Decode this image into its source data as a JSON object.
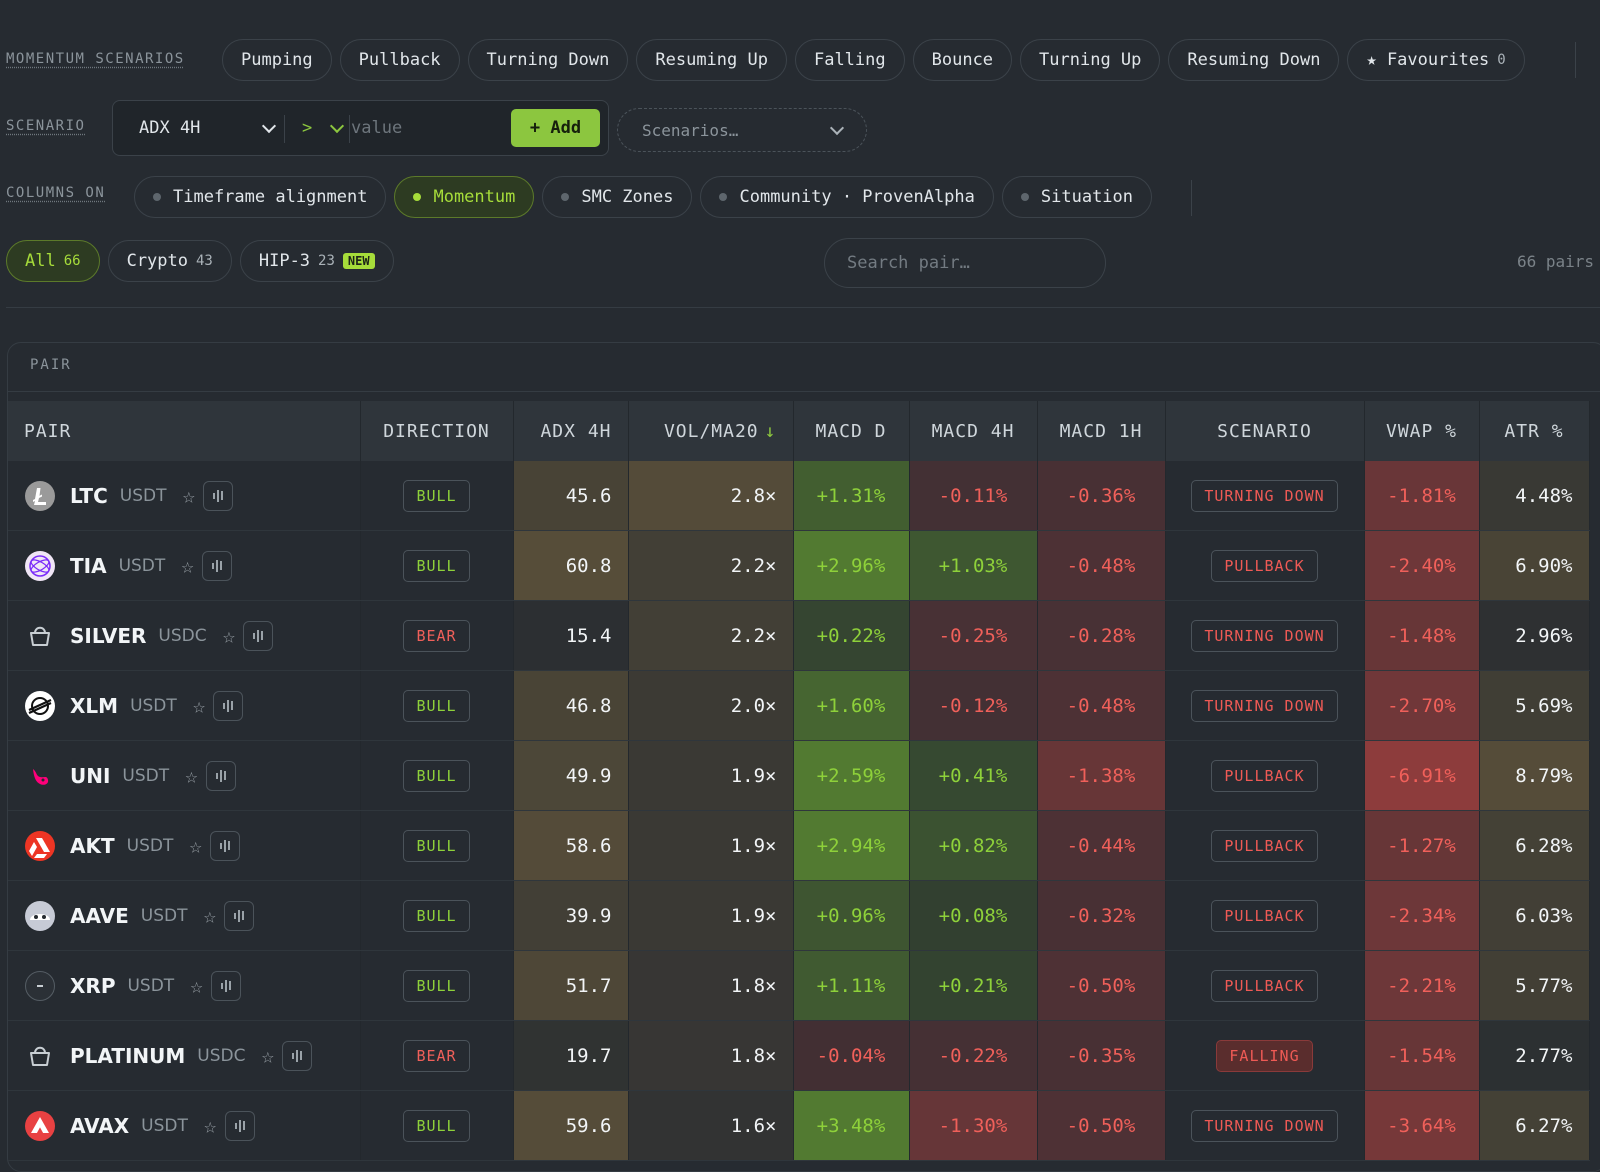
{
  "filters": {
    "momentum_label": "MOMENTUM SCENARIOS",
    "momentum_chips": [
      "Pumping",
      "Pullback",
      "Turning Down",
      "Resuming Up",
      "Falling",
      "Bounce",
      "Turning Up",
      "Resuming Down"
    ],
    "favourites_label": "★ Favourites",
    "favourites_count": "0",
    "scenario_label": "SCENARIO",
    "builder": {
      "metric": "ADX 4H",
      "operator": ">",
      "value_placeholder": "value",
      "add_label": "+ Add"
    },
    "scenarios_dropdown": "Scenarios…",
    "columns_label": "COLUMNS ON",
    "columns_chips": [
      {
        "label": "Timeframe alignment",
        "active": false
      },
      {
        "label": "Momentum",
        "active": true
      },
      {
        "label": "SMC Zones",
        "active": false
      },
      {
        "label": "Community · ProvenAlpha",
        "active": false
      },
      {
        "label": "Situation",
        "active": false
      }
    ],
    "market_tabs": [
      {
        "label": "All",
        "count": "66",
        "active": true
      },
      {
        "label": "Crypto",
        "count": "43",
        "active": false
      },
      {
        "label": "HIP-3",
        "count": "23",
        "active": false,
        "badge": "NEW"
      }
    ],
    "search_placeholder": "Search pair…",
    "pairs_count": "66 pairs"
  },
  "table": {
    "group_header": "PAIR",
    "columns": [
      "PAIR",
      "DIRECTION",
      "ADX 4H",
      "VOL/MA20",
      "MACD D",
      "MACD 4H",
      "MACD 1H",
      "SCENARIO",
      "VWAP %",
      "ATR %"
    ],
    "sort_indicator": "↓",
    "rows": [
      {
        "symbol": "LTC",
        "quote": "USDT",
        "icon": "ltc-icon",
        "direction": "BULL",
        "adx": "45.6",
        "vol": "2.8×",
        "macd_d": "+1.31%",
        "macd_4h": "-0.11%",
        "macd_1h": "-0.36%",
        "scenario": "TURNING DOWN",
        "vwap": "-1.81%",
        "atr": "4.48%"
      },
      {
        "symbol": "TIA",
        "quote": "USDT",
        "icon": "tia-icon",
        "direction": "BULL",
        "adx": "60.8",
        "vol": "2.2×",
        "macd_d": "+2.96%",
        "macd_4h": "+1.03%",
        "macd_1h": "-0.48%",
        "scenario": "PULLBACK",
        "vwap": "-2.40%",
        "atr": "6.90%"
      },
      {
        "symbol": "SILVER",
        "quote": "USDC",
        "icon": "basket-icon",
        "direction": "BEAR",
        "adx": "15.4",
        "vol": "2.2×",
        "macd_d": "+0.22%",
        "macd_4h": "-0.25%",
        "macd_1h": "-0.28%",
        "scenario": "TURNING DOWN",
        "vwap": "-1.48%",
        "atr": "2.96%"
      },
      {
        "symbol": "XLM",
        "quote": "USDT",
        "icon": "xlm-icon",
        "direction": "BULL",
        "adx": "46.8",
        "vol": "2.0×",
        "macd_d": "+1.60%",
        "macd_4h": "-0.12%",
        "macd_1h": "-0.48%",
        "scenario": "TURNING DOWN",
        "vwap": "-2.70%",
        "atr": "5.69%"
      },
      {
        "symbol": "UNI",
        "quote": "USDT",
        "icon": "uni-icon",
        "direction": "BULL",
        "adx": "49.9",
        "vol": "1.9×",
        "macd_d": "+2.59%",
        "macd_4h": "+0.41%",
        "macd_1h": "-1.38%",
        "scenario": "PULLBACK",
        "vwap": "-6.91%",
        "atr": "8.79%"
      },
      {
        "symbol": "AKT",
        "quote": "USDT",
        "icon": "akt-icon",
        "direction": "BULL",
        "adx": "58.6",
        "vol": "1.9×",
        "macd_d": "+2.94%",
        "macd_4h": "+0.82%",
        "macd_1h": "-0.44%",
        "scenario": "PULLBACK",
        "vwap": "-1.27%",
        "atr": "6.28%"
      },
      {
        "symbol": "AAVE",
        "quote": "USDT",
        "icon": "aave-icon",
        "direction": "BULL",
        "adx": "39.9",
        "vol": "1.9×",
        "macd_d": "+0.96%",
        "macd_4h": "+0.08%",
        "macd_1h": "-0.32%",
        "scenario": "PULLBACK",
        "vwap": "-2.34%",
        "atr": "6.03%"
      },
      {
        "symbol": "XRP",
        "quote": "USDT",
        "icon": "xrp-icon",
        "direction": "BULL",
        "adx": "51.7",
        "vol": "1.8×",
        "macd_d": "+1.11%",
        "macd_4h": "+0.21%",
        "macd_1h": "-0.50%",
        "scenario": "PULLBACK",
        "vwap": "-2.21%",
        "atr": "5.77%"
      },
      {
        "symbol": "PLATINUM",
        "quote": "USDC",
        "icon": "basket-icon",
        "direction": "BEAR",
        "adx": "19.7",
        "vol": "1.8×",
        "macd_d": "-0.04%",
        "macd_4h": "-0.22%",
        "macd_1h": "-0.35%",
        "scenario": "FALLING",
        "vwap": "-1.54%",
        "atr": "2.77%"
      },
      {
        "symbol": "AVAX",
        "quote": "USDT",
        "icon": "avax-icon",
        "direction": "BULL",
        "adx": "59.6",
        "vol": "1.6×",
        "macd_d": "+3.48%",
        "macd_4h": "-1.30%",
        "macd_1h": "-0.50%",
        "scenario": "TURNING DOWN",
        "vwap": "-3.64%",
        "atr": "6.27%"
      }
    ]
  },
  "colors": {
    "accent": "#8cc63f",
    "bull": "#8ed13a",
    "bear": "#f0605a",
    "background": "#262b31"
  }
}
